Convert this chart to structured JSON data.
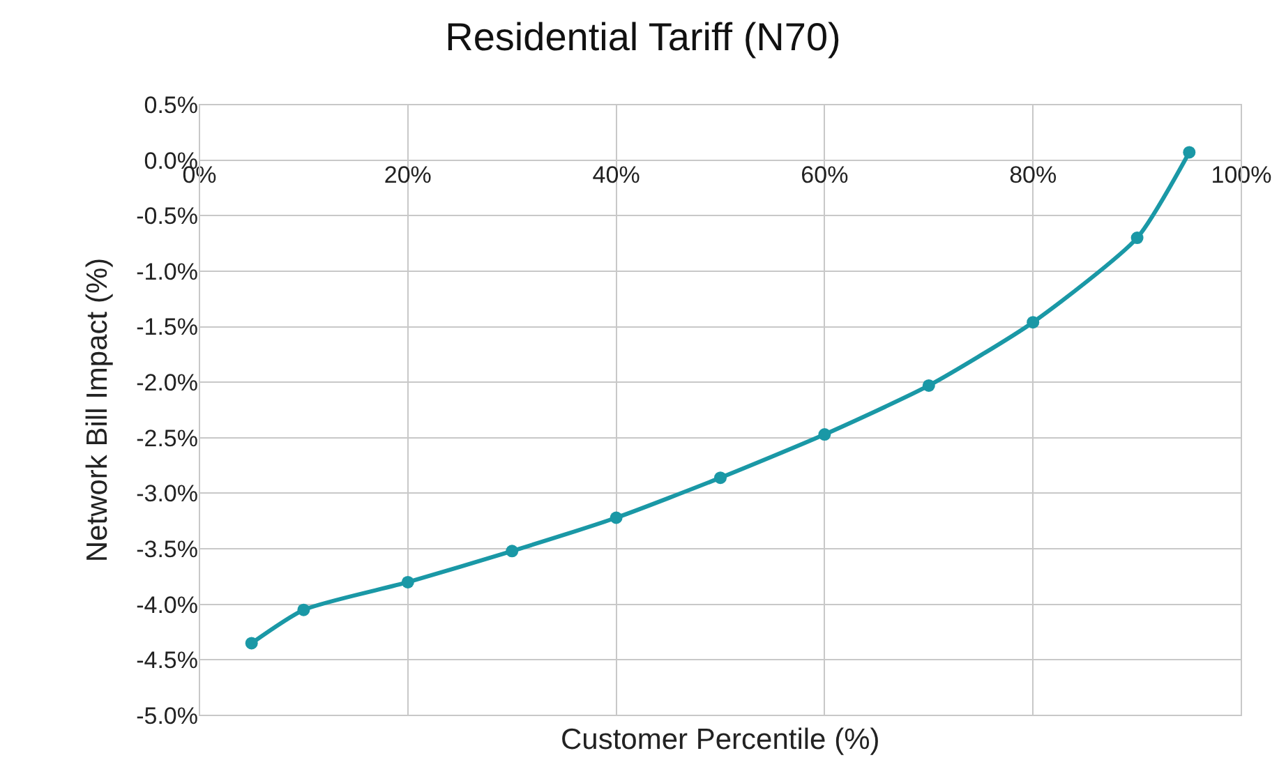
{
  "chart_data": {
    "type": "line",
    "title": "Residential Tariff (N70)",
    "xlabel": "Customer Percentile (%)",
    "ylabel": "Network Bill Impact (%)",
    "x": [
      5,
      10,
      20,
      30,
      40,
      50,
      60,
      70,
      80,
      90,
      95
    ],
    "series": [
      {
        "color": "#1a98a6",
        "values": [
          -4.35,
          -4.05,
          -3.8,
          -3.52,
          -3.22,
          -2.86,
          -2.47,
          -2.03,
          -1.46,
          -0.7,
          0.07
        ]
      }
    ],
    "xlim": [
      0,
      100
    ],
    "xticks": [
      {
        "value": 0,
        "label": "0%"
      },
      {
        "value": 20,
        "label": "20%"
      },
      {
        "value": 40,
        "label": "40%"
      },
      {
        "value": 60,
        "label": "60%"
      },
      {
        "value": 80,
        "label": "80%"
      },
      {
        "value": 100,
        "label": "100%"
      }
    ],
    "ylim": [
      -5,
      0.5
    ],
    "yticks": [
      {
        "value": -5,
        "label": "-5.0%"
      },
      {
        "value": -4.5,
        "label": "-4.5%"
      },
      {
        "value": -4,
        "label": "-4.0%"
      },
      {
        "value": -3.5,
        "label": "-3.5%"
      },
      {
        "value": -3,
        "label": "-3.0%"
      },
      {
        "value": -2.5,
        "label": "-2.5%"
      },
      {
        "value": -2,
        "label": "-2.0%"
      },
      {
        "value": -1.5,
        "label": "-1.5%"
      },
      {
        "value": -1,
        "label": "-1.0%"
      },
      {
        "value": -0.5,
        "label": "-0.5%"
      },
      {
        "value": 0,
        "label": "0.0%"
      },
      {
        "value": 0.5,
        "label": "0.5%"
      }
    ],
    "grid": true,
    "legend": false,
    "marker": "circle",
    "line_style": "solid"
  }
}
